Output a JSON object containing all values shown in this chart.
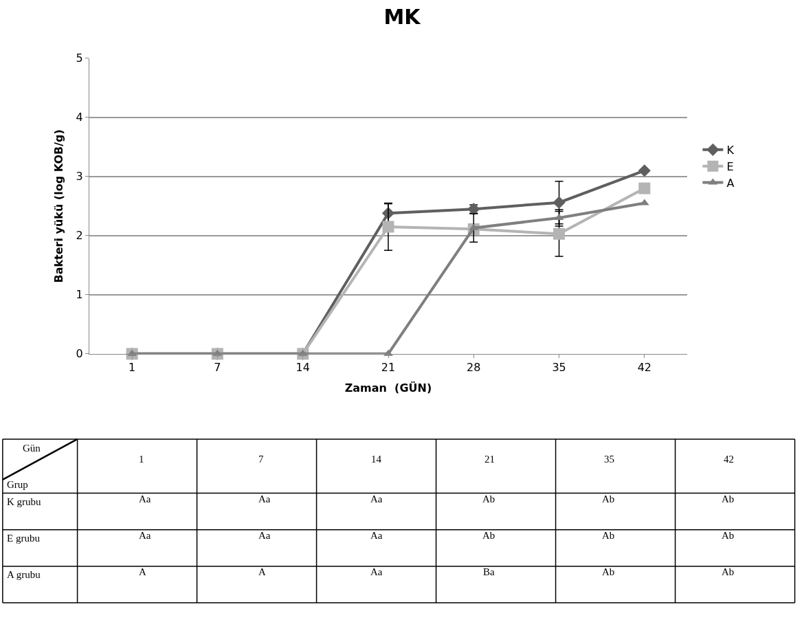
{
  "chart_data": [
    {
      "type": "line",
      "title": "MK",
      "xlabel": "Zaman  (GÜN)",
      "ylabel": "Bakteri yükü (log KOB/g)",
      "categories": [
        "1",
        "7",
        "14",
        "21",
        "28",
        "35",
        "42"
      ],
      "ylim": [
        0,
        5
      ],
      "yticks": [
        0,
        1,
        2,
        3,
        4,
        5
      ],
      "grid": "y",
      "legend": "right",
      "series": [
        {
          "name": "K",
          "color": "#5f5f5f",
          "marker": "diamond",
          "values": [
            0,
            0,
            0,
            2.38,
            2.45,
            2.56,
            3.1
          ],
          "errors": [
            null,
            null,
            null,
            0.16,
            0.07,
            0.36,
            null
          ]
        },
        {
          "name": "E",
          "color": "#b4b4b4",
          "marker": "square",
          "values": [
            0,
            0,
            0,
            2.15,
            2.11,
            2.03,
            2.8
          ],
          "errors": [
            null,
            null,
            null,
            0.4,
            null,
            0.38,
            null
          ]
        },
        {
          "name": "A",
          "color": "#7f7f7f",
          "marker": "triangle",
          "values": [
            0,
            0,
            0,
            0,
            2.13,
            2.3,
            2.55
          ],
          "errors": [
            null,
            null,
            null,
            null,
            0.24,
            0.14,
            null
          ]
        }
      ]
    },
    {
      "type": "other",
      "xlabel": "Gün",
      "ylabel": "Grup",
      "categories": [
        "1",
        "7",
        "14",
        "21",
        "35",
        "42"
      ],
      "y_categories": [
        "K grubu",
        "E grubu",
        "A grubu"
      ],
      "cell_labels": [
        [
          "Aa",
          "Aa",
          "Aa",
          "Ab",
          "Ab",
          "Ab"
        ],
        [
          "Aa",
          "Aa",
          "Aa",
          "Ab",
          "Ab",
          "Ab"
        ],
        [
          "A",
          "A",
          "Aa",
          "Ba",
          "Ab",
          "Ab"
        ]
      ]
    }
  ]
}
